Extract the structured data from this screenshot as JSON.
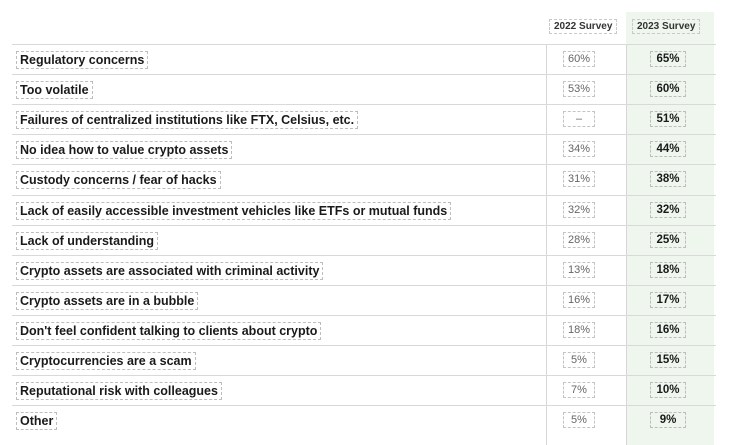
{
  "chart_data": {
    "type": "table",
    "columns": [
      "2022 Survey",
      "2023 Survey"
    ],
    "rows": [
      {
        "label": "Regulatory concerns",
        "v2022": "60%",
        "v2023": "65%"
      },
      {
        "label": "Too volatile",
        "v2022": "53%",
        "v2023": "60%"
      },
      {
        "label": "Failures of centralized institutions like FTX, Celsius, etc.",
        "v2022": "–",
        "v2023": "51%"
      },
      {
        "label": "No idea how to value crypto assets",
        "v2022": "34%",
        "v2023": "44%"
      },
      {
        "label": "Custody concerns / fear of hacks",
        "v2022": "31%",
        "v2023": "38%"
      },
      {
        "label": "Lack of easily accessible investment vehicles like ETFs or mutual funds",
        "v2022": "32%",
        "v2023": "32%"
      },
      {
        "label": "Lack of understanding",
        "v2022": "28%",
        "v2023": "25%"
      },
      {
        "label": "Crypto assets are associated with criminal activity",
        "v2022": "13%",
        "v2023": "18%"
      },
      {
        "label": "Crypto assets are in a bubble",
        "v2022": "16%",
        "v2023": "17%"
      },
      {
        "label": "Don't feel confident talking to clients about crypto",
        "v2022": "18%",
        "v2023": "16%"
      },
      {
        "label": "Cryptocurrencies are a scam",
        "v2022": "5%",
        "v2023": "15%"
      },
      {
        "label": "Reputational risk with colleagues",
        "v2022": "7%",
        "v2023": "10%"
      },
      {
        "label": "Other",
        "v2022": "5%",
        "v2023": "9%"
      }
    ],
    "colors": {
      "highlight_column": "#eef6ee"
    }
  }
}
